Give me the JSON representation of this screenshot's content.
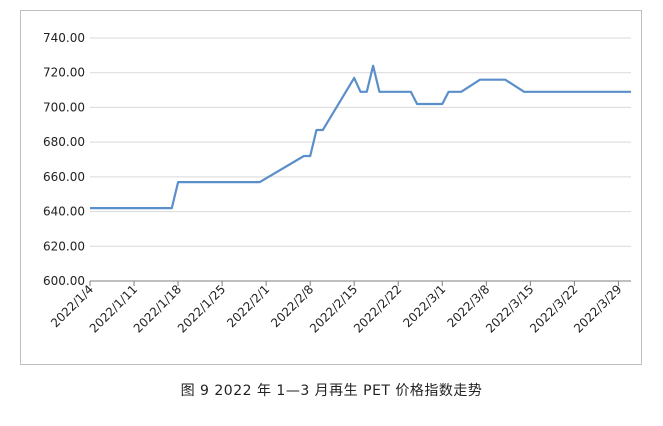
{
  "caption": "图 9  2022 年 1—3 月再生 PET 价格指数走势",
  "chart_data": {
    "type": "line",
    "title": "",
    "xlabel": "",
    "ylabel": "",
    "ylim": [
      600,
      740
    ],
    "yticks": [
      "600.00",
      "620.00",
      "640.00",
      "660.00",
      "680.00",
      "700.00",
      "720.00",
      "740.00"
    ],
    "xticks": [
      "2022/1/4",
      "2022/1/11",
      "2022/1/18",
      "2022/1/25",
      "2022/2/1",
      "2022/2/8",
      "2022/2/15",
      "2022/2/22",
      "2022/3/1",
      "2022/3/8",
      "2022/3/15",
      "2022/3/22",
      "2022/3/29"
    ],
    "grid": true,
    "legend": "none",
    "line_color": "#5b8fc9",
    "series": [
      {
        "x": [
          "2022/1/4",
          "2022/1/17",
          "2022/1/18",
          "2022/1/31",
          "2022/2/7",
          "2022/2/8",
          "2022/2/9",
          "2022/2/10",
          "2022/2/15",
          "2022/2/16",
          "2022/2/17",
          "2022/2/18",
          "2022/2/19",
          "2022/2/24",
          "2022/2/25",
          "2022/3/1",
          "2022/3/2",
          "2022/3/4",
          "2022/3/7",
          "2022/3/11",
          "2022/3/14",
          "2022/3/31"
        ],
        "values": [
          642,
          642,
          657,
          657,
          672,
          672,
          687,
          687,
          717,
          709,
          709,
          724,
          709,
          709,
          702,
          702,
          709,
          709,
          716,
          716,
          709,
          709
        ]
      }
    ]
  }
}
